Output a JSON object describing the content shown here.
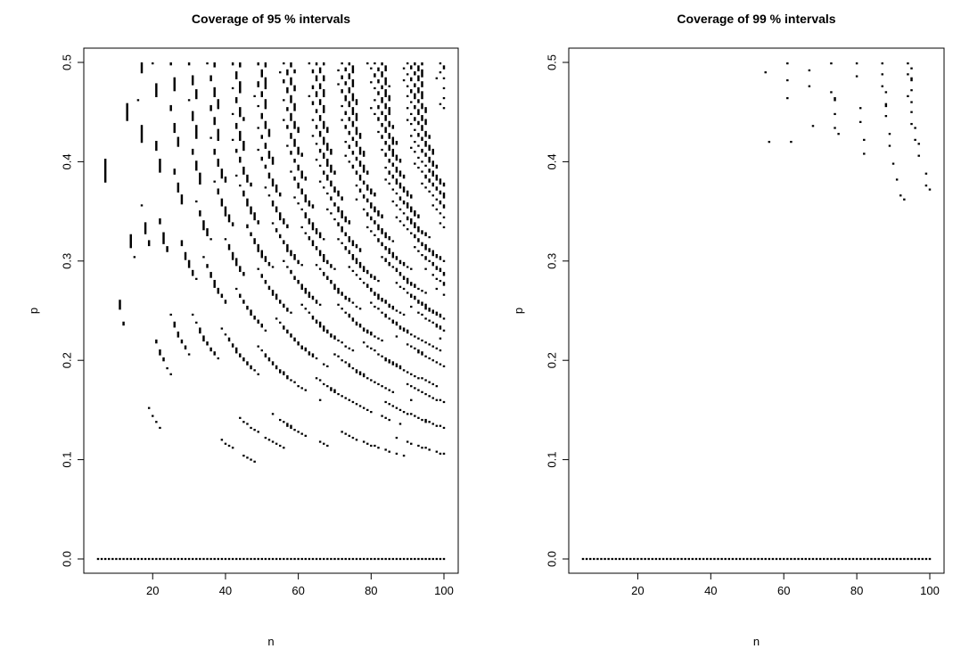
{
  "chart_data": [
    {
      "type": "heatmap",
      "title": "Coverage of 95 % intervals",
      "xlabel": "n",
      "ylabel": "p",
      "xlim": [
        5,
        100
      ],
      "ylim": [
        0,
        0.5
      ],
      "x_ticks": [
        "20",
        "40",
        "60",
        "80",
        "100"
      ],
      "y_ticks": [
        "0.0",
        "0.1",
        "0.2",
        "0.3",
        "0.4",
        "0.5"
      ],
      "x_grid": {
        "from": 5,
        "to": 100,
        "step": 1
      },
      "y_grid": {
        "from": 0,
        "to": 0.5,
        "step": 0.002
      },
      "confidence_level": 0.95,
      "cell_rule": "black where the coverage probability of the nominal interval for a binomial proportion at (n, p) is at least the nominal level",
      "colors": {
        "covered": "#000000",
        "not_covered": "#ffffff"
      },
      "grid": false
    },
    {
      "type": "heatmap",
      "title": "Coverage of 99 % intervals",
      "xlabel": "n",
      "ylabel": "p",
      "xlim": [
        5,
        100
      ],
      "ylim": [
        0,
        0.5
      ],
      "x_ticks": [
        "20",
        "40",
        "60",
        "80",
        "100"
      ],
      "y_ticks": [
        "0.0",
        "0.1",
        "0.2",
        "0.3",
        "0.4",
        "0.5"
      ],
      "x_grid": {
        "from": 5,
        "to": 100,
        "step": 1
      },
      "y_grid": {
        "from": 0,
        "to": 0.5,
        "step": 0.002
      },
      "confidence_level": 0.99,
      "cell_rule": "black where the coverage probability of the nominal interval for a binomial proportion at (n, p) is at least the nominal level",
      "colors": {
        "covered": "#000000",
        "not_covered": "#ffffff"
      },
      "grid": false
    }
  ]
}
